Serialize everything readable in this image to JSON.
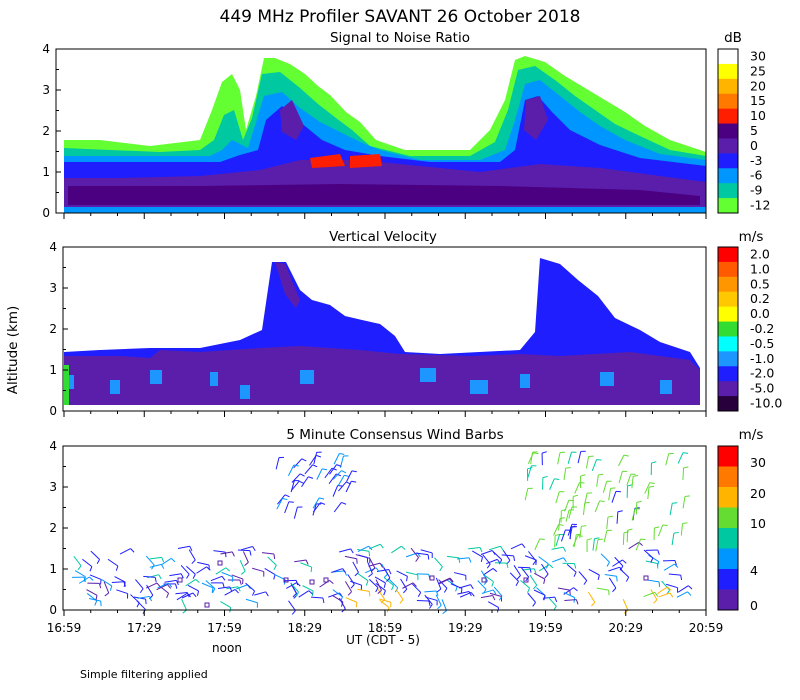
{
  "header": {
    "title": "449 MHz Profiler SAVANT 26 October 2018",
    "footnote": "Simple filtering applied"
  },
  "axes": {
    "ylabel": "Altitude (km)",
    "y_ticks": [
      "0",
      "1",
      "2",
      "3",
      "4"
    ],
    "x_ticks": [
      "16:59",
      "17:29",
      "17:59",
      "18:29",
      "18:59",
      "19:29",
      "19:59",
      "20:29",
      "20:59"
    ],
    "xlabel": "UT  (CDT - 5)",
    "noon_label": "noon"
  },
  "chart_data": [
    {
      "type": "heatmap",
      "title": "Signal to Noise Ratio",
      "units": "dB",
      "colorbar_labels": [
        "30",
        "25",
        "20",
        "15",
        "10",
        "5",
        "0",
        "-3",
        "-6",
        "-9",
        "-12"
      ],
      "colorbar_colors": [
        "#ffffff",
        "#ffff00",
        "#ffb400",
        "#ff7800",
        "#ff1e00",
        "#4b0082",
        "#5a1eaa",
        "#1e1eff",
        "#0096ff",
        "#00c8a0",
        "#64ff32"
      ],
      "x_range": [
        "16:59",
        "20:59"
      ],
      "ylim": [
        0,
        4
      ]
    },
    {
      "type": "heatmap",
      "title": "Vertical Velocity",
      "units": "m/s",
      "colorbar_labels": [
        "2.0",
        "1.0",
        "0.5",
        "0.2",
        "0.0",
        "-0.2",
        "-0.5",
        "-1.0",
        "-2.0",
        "-5.0",
        "-10.0"
      ],
      "colorbar_colors": [
        "#ff0000",
        "#ff5a00",
        "#ff9600",
        "#ffc800",
        "#ffff00",
        "#32dc32",
        "#00ffff",
        "#1e96ff",
        "#1e1eff",
        "#5a1eaa",
        "#28003c"
      ],
      "x_range": [
        "16:59",
        "20:59"
      ],
      "ylim": [
        0,
        4
      ]
    },
    {
      "type": "scatter",
      "title": "5 Minute Consensus Wind Barbs",
      "units": "m/s",
      "colorbar_labels": [
        "30",
        "20",
        "10",
        "4",
        "0"
      ],
      "colorbar_colors": [
        "#ff0000",
        "#ff7800",
        "#ffb400",
        "#64dc32",
        "#00c8a0",
        "#0096ff",
        "#1e1eff",
        "#5a1eaa"
      ],
      "x_range": [
        "16:59",
        "20:59"
      ],
      "ylim": [
        0,
        4
      ]
    }
  ]
}
